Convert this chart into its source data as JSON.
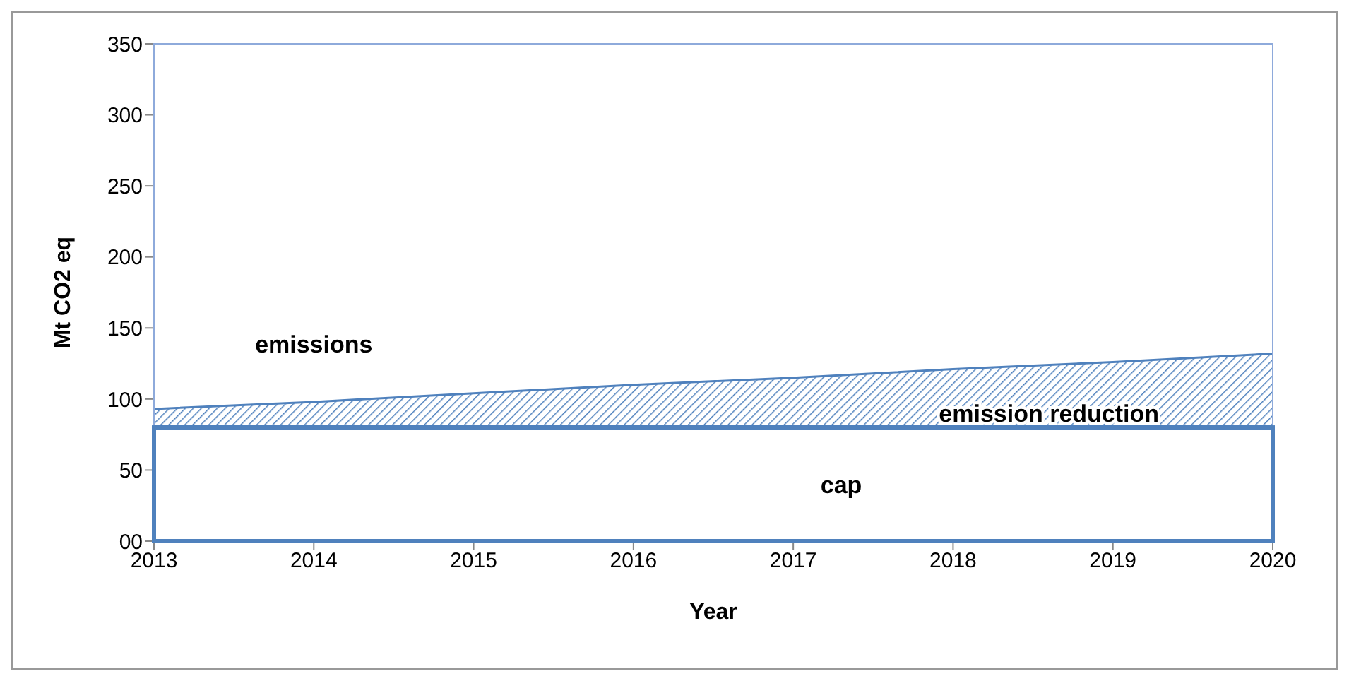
{
  "chart_data": {
    "type": "area",
    "xlabel": "Year",
    "ylabel": "Mt CO2 eq",
    "x": [
      2013,
      2014,
      2015,
      2016,
      2017,
      2018,
      2019,
      2020
    ],
    "series": [
      {
        "name": "emissions",
        "color": "#4f81bd",
        "values": [
          93,
          98,
          104,
          110,
          115,
          121,
          126,
          132
        ]
      },
      {
        "name": "cap",
        "color": "#4f81bd",
        "values": [
          80,
          80,
          80,
          80,
          80,
          80,
          80,
          80
        ]
      }
    ],
    "annotations": [
      "emission reduction"
    ],
    "xlim": [
      2013,
      2020
    ],
    "xticks": [
      2013,
      2014,
      2015,
      2016,
      2017,
      2018,
      2019,
      2020
    ],
    "ylim": [
      0,
      350
    ],
    "yticks": [
      {
        "value": 0,
        "label": "00"
      },
      50,
      100,
      150,
      200,
      250,
      300,
      350
    ],
    "grid": false,
    "legend": false
  }
}
